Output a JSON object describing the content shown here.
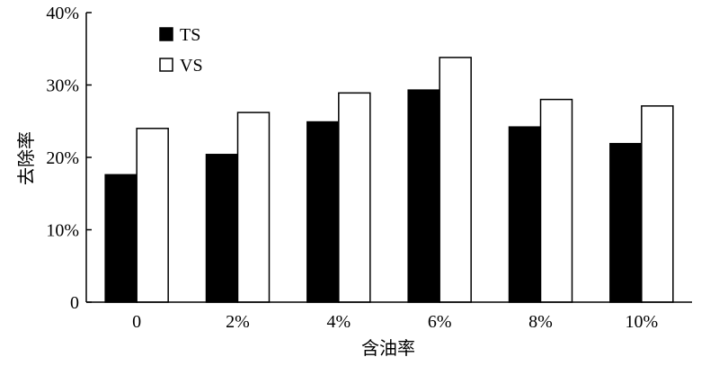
{
  "chart_data": {
    "type": "bar",
    "title": "",
    "xlabel": "含油率",
    "ylabel": "去除率",
    "categories": [
      "0",
      "2%",
      "4%",
      "6%",
      "8%",
      "10%"
    ],
    "series": [
      {
        "name": "TS",
        "values": [
          17.6,
          20.4,
          24.9,
          29.3,
          24.2,
          21.9
        ],
        "color": "#000000"
      },
      {
        "name": "VS",
        "values": [
          24.0,
          26.2,
          28.9,
          33.8,
          28.0,
          27.1
        ],
        "color": "#ffffff"
      }
    ],
    "ylim": [
      0,
      40
    ],
    "yticks": [
      "0",
      "10%",
      "20%",
      "30%",
      "40%"
    ],
    "grid": false,
    "legend_position": "top-left"
  }
}
